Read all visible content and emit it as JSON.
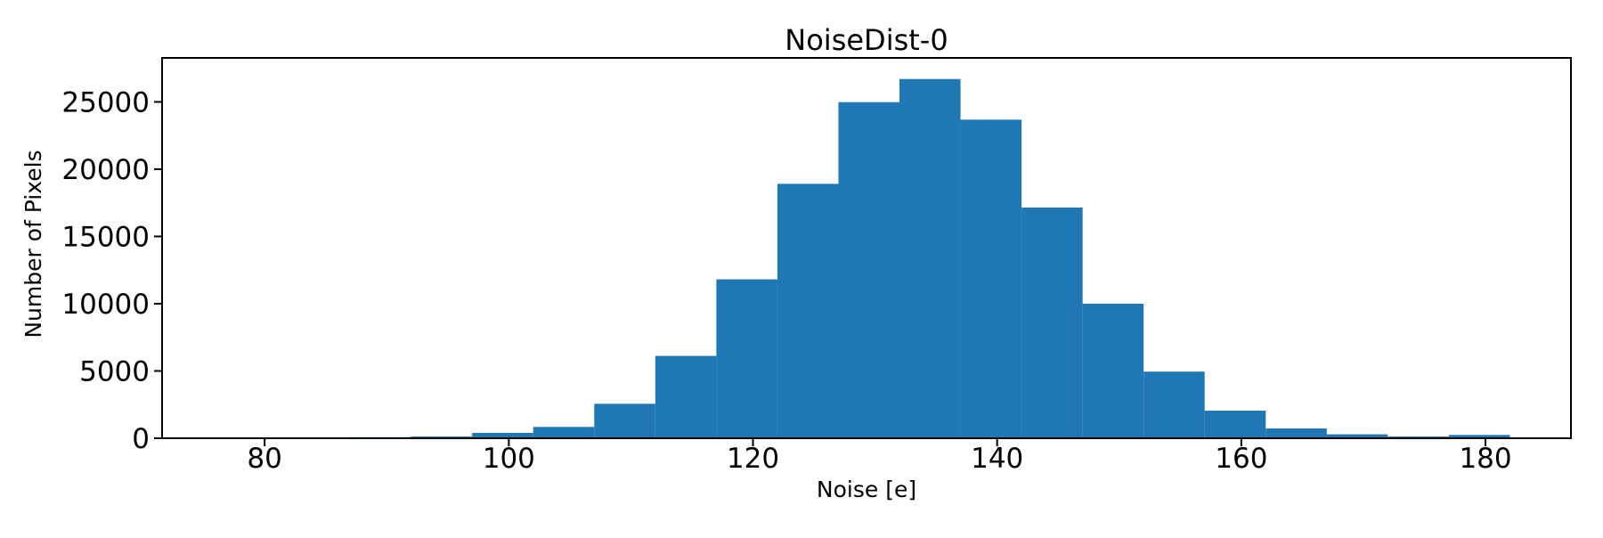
{
  "chart_data": {
    "type": "bar",
    "style": "histogram",
    "title": "NoiseDist-0",
    "xlabel": "Noise [e]",
    "ylabel": "Number of Pixels",
    "bar_color": "#1f77b4",
    "background_color": "#ffffff",
    "spine_color": "#000000",
    "grid": false,
    "legend": null,
    "bin_edges": [
      87,
      92,
      97,
      102,
      107,
      112,
      117,
      122,
      127,
      132,
      137,
      142,
      147,
      152,
      157,
      162,
      167,
      172,
      177,
      182
    ],
    "counts": [
      80,
      130,
      400,
      840,
      2560,
      6120,
      11810,
      18910,
      24980,
      26700,
      23680,
      17150,
      10000,
      4950,
      2050,
      730,
      290,
      130,
      245
    ],
    "xticks": [
      80,
      100,
      120,
      140,
      160,
      180
    ],
    "yticks": [
      0,
      5000,
      10000,
      15000,
      20000,
      25000
    ],
    "xlim": [
      71.6,
      187.0
    ],
    "ylim": [
      0,
      28270
    ]
  }
}
